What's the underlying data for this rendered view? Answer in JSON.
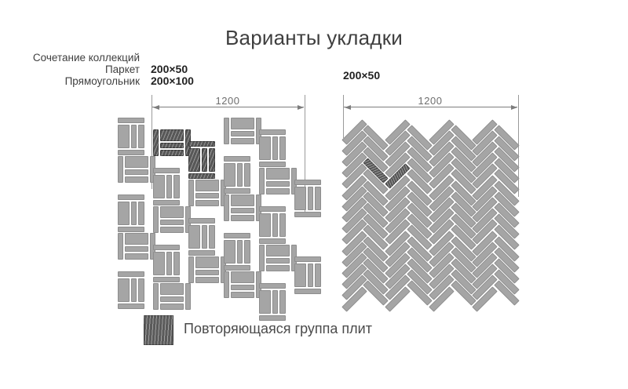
{
  "title": "Варианты укладки",
  "left_panel": {
    "collection_lines": [
      "Сочетание коллекций",
      "Паркет",
      "Прямоугольник"
    ],
    "tile_sizes": [
      "200×50",
      "200×100"
    ],
    "dimension_label": "1200",
    "pattern_type": "basketweave-mixed"
  },
  "right_panel": {
    "tile_size": "200×50",
    "dimension_label": "1200",
    "pattern_type": "herringbone"
  },
  "legend": {
    "label": "Повторяющаяся группа плит",
    "swatch": "hatched-dark-square"
  },
  "colors": {
    "tile": "#a5a5a5",
    "tile_edge": "#8e8e8e",
    "highlight": "#575757",
    "text": "#3f3f3f",
    "dimension": "#7d7d7d",
    "background": "#ffffff"
  }
}
